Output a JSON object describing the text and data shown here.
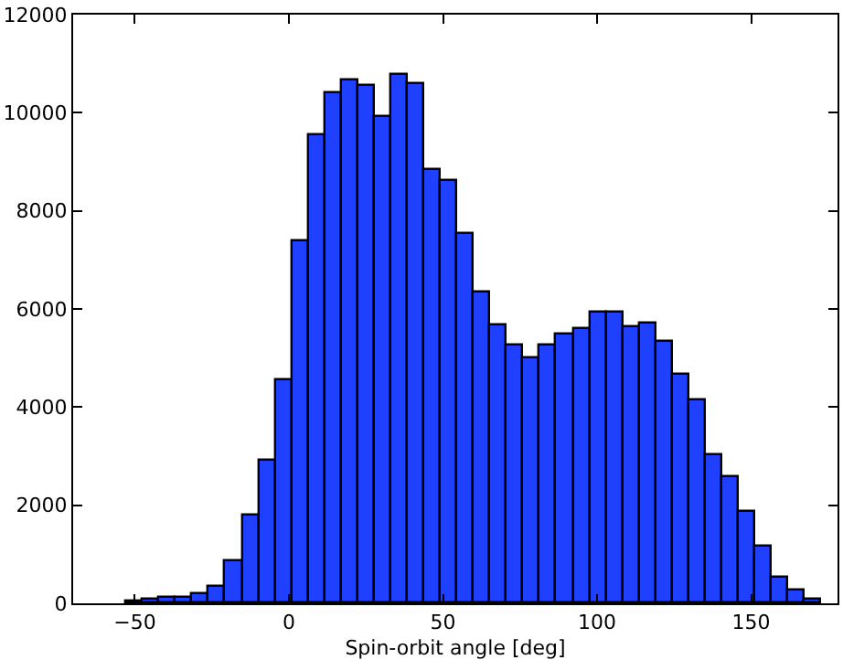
{
  "chart_data": {
    "type": "histogram",
    "xlabel": "Spin-orbit angle [deg]",
    "bins": [
      -52.7,
      -47.33,
      -41.96,
      -36.59,
      -31.22,
      -25.85,
      -20.48,
      -15.11,
      -9.74,
      -4.37,
      1.0,
      6.37,
      11.74,
      17.11,
      22.48,
      27.85,
      33.22,
      38.59,
      43.96,
      49.33,
      54.7,
      60.07,
      65.44,
      70.81,
      76.18,
      81.55,
      86.92,
      92.29,
      97.66,
      103.03,
      108.4,
      113.77,
      119.14,
      124.51,
      129.88,
      135.25,
      140.62,
      145.99,
      151.36,
      156.73,
      162.1,
      167.47,
      172.84
    ],
    "values": [
      30,
      60,
      100,
      130,
      180,
      340,
      870,
      1800,
      2890,
      4540,
      7390,
      9530,
      10400,
      10670,
      10560,
      9920,
      10760,
      10570,
      8830,
      8610,
      7510,
      6330,
      5650,
      5260,
      4980,
      5260,
      5490,
      5590,
      5920,
      5910,
      5630,
      5710,
      5340,
      4660,
      4150,
      3020,
      2570,
      1860,
      1150,
      510,
      260,
      70
    ],
    "color": "#2040ff",
    "xlim": [
      -70,
      178
    ],
    "xticks": [
      -50,
      0,
      50,
      100,
      150
    ],
    "ylim": [
      0,
      12000
    ],
    "yticks": [
      0,
      2000,
      4000,
      6000,
      8000,
      10000,
      12000
    ],
    "grid": false
  }
}
